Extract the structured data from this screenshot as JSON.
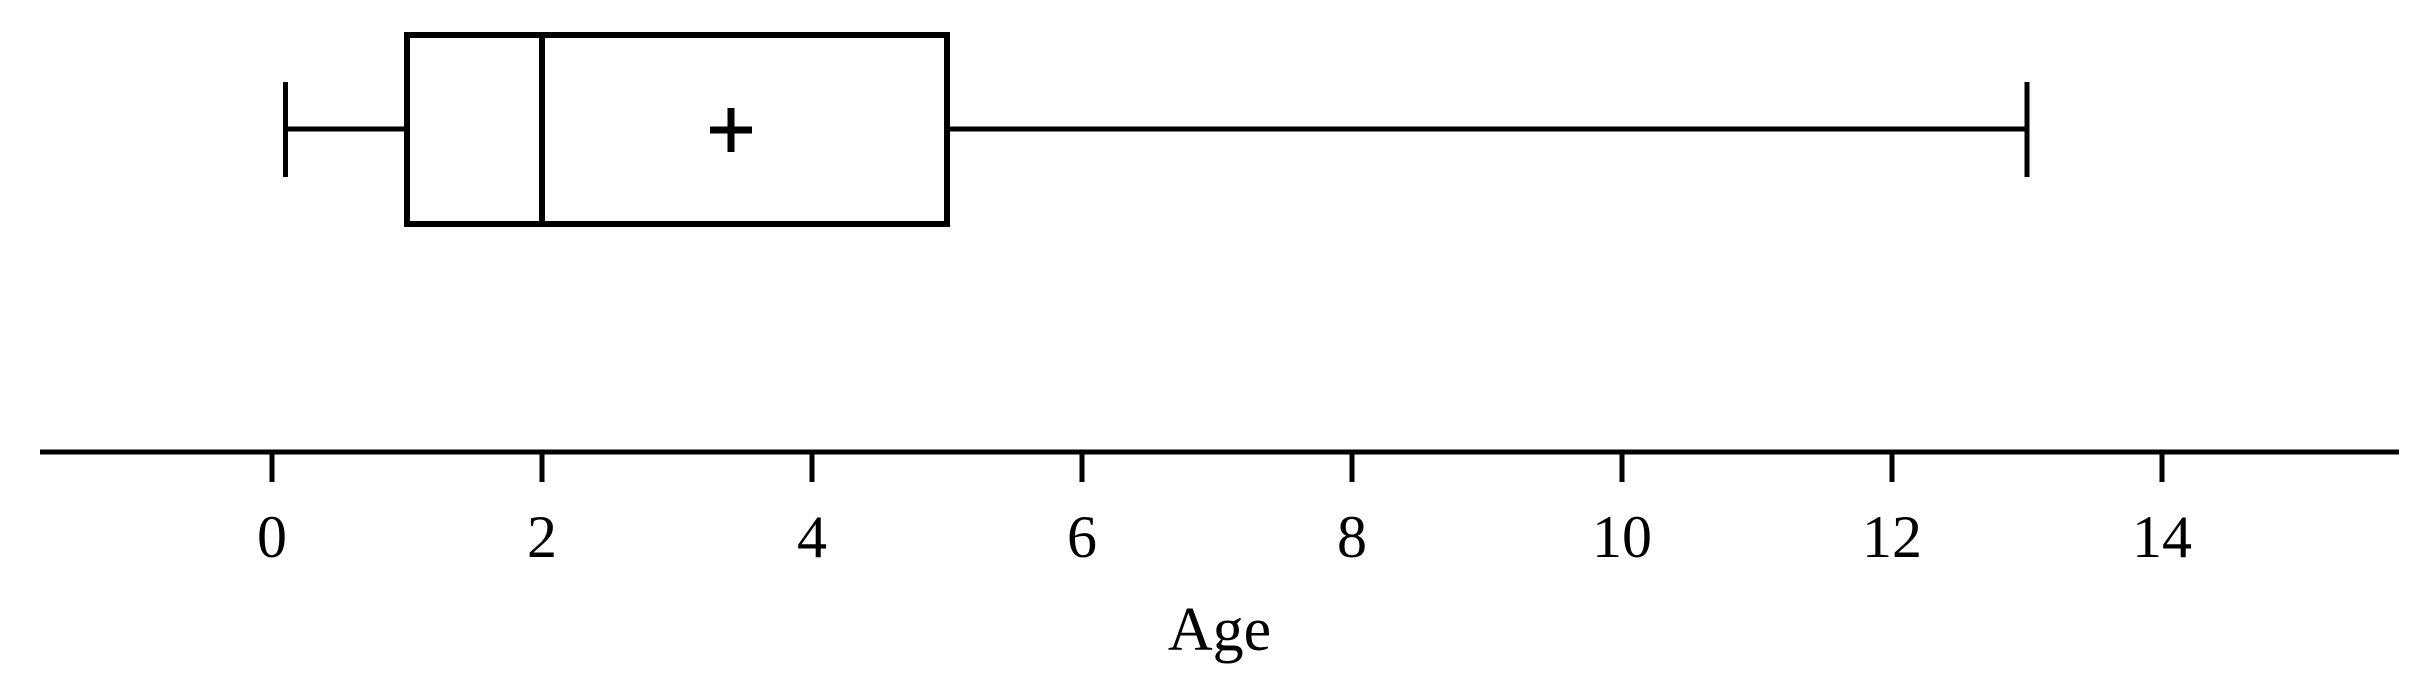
{
  "figure": {
    "background_color": "#ffffff",
    "ink_color": "#000000"
  },
  "chart_data": {
    "type": "boxplot",
    "orientation": "horizontal",
    "title": "",
    "xlabel": "Age",
    "ylabel": "",
    "stats": {
      "min": 0.1,
      "q1": 1,
      "median": 2,
      "q3": 5,
      "max": 13,
      "mean": 3.4
    },
    "mean_marker_symbol": "+",
    "axis": {
      "tick_values": [
        0,
        2,
        4,
        6,
        8,
        10,
        12,
        14
      ],
      "tick_labels": [
        "0",
        "2",
        "4",
        "6",
        "8",
        "10",
        "12",
        "14"
      ],
      "range": [
        -1.72,
        15.76
      ],
      "grid": false,
      "position": "bottom"
    }
  }
}
